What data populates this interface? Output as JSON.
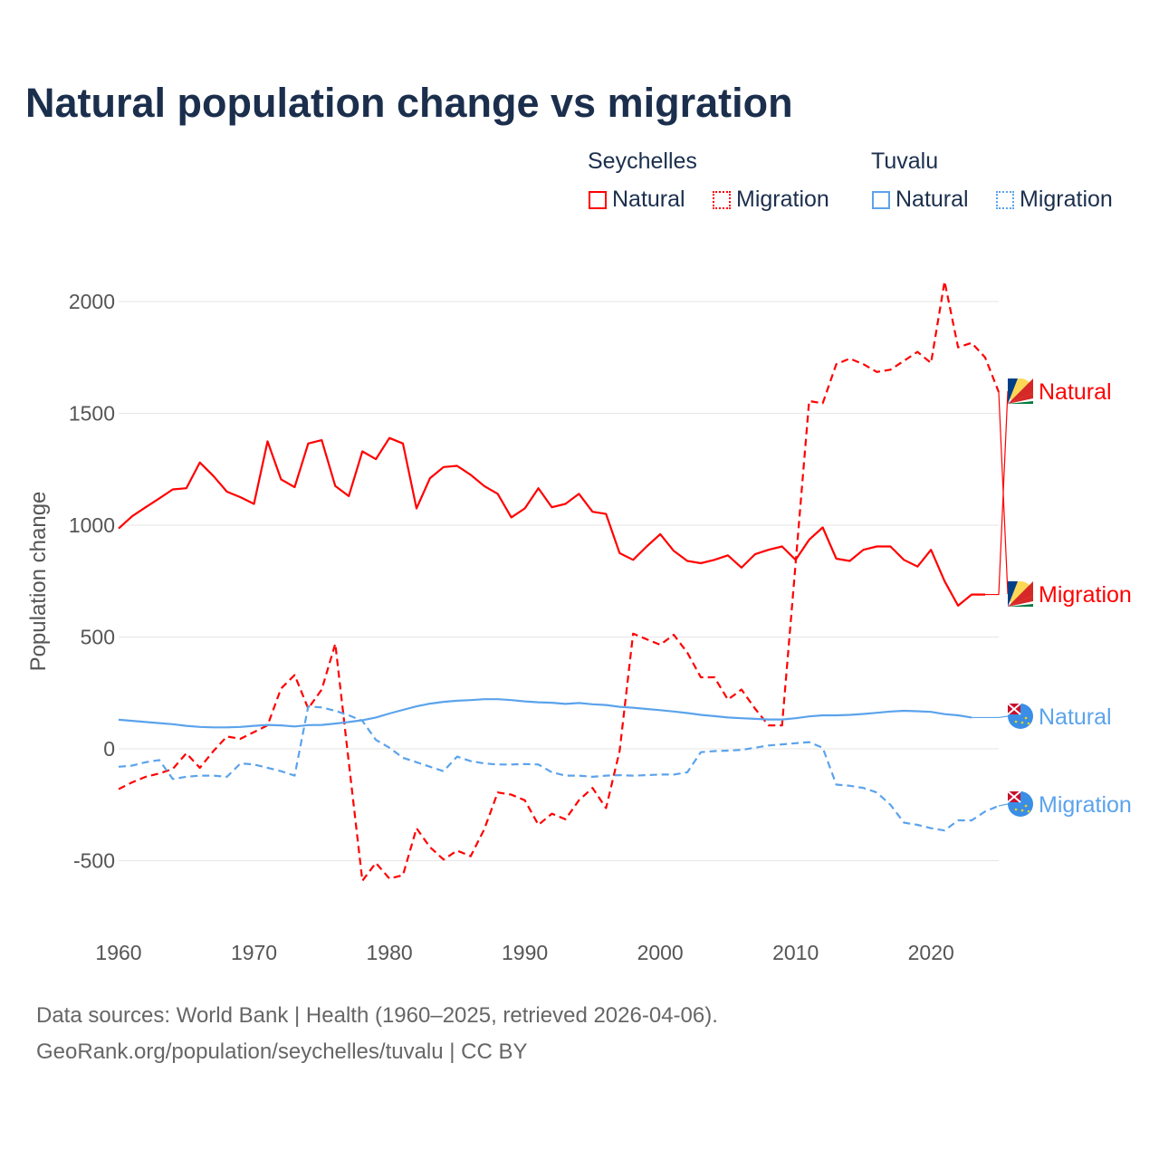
{
  "title": "Natural population change vs migration",
  "legend": {
    "groups": [
      {
        "name": "Seychelles",
        "items": [
          "Natural",
          "Migration"
        ],
        "color": "#ff0000"
      },
      {
        "name": "Tuvalu",
        "items": [
          "Natural",
          "Migration"
        ],
        "color": "#5ba3ec"
      }
    ]
  },
  "footer": {
    "line1": "Data sources: World Bank | Health (1960–2025, retrieved 2026-04-06).",
    "line2": "GeoRank.org/population/seychelles/tuvalu | CC BY"
  },
  "chart_data": {
    "type": "line",
    "title": "Natural population change vs migration",
    "xlabel": "",
    "ylabel": "Population change",
    "xlim": [
      1960,
      2025
    ],
    "ylim": [
      -750,
      2150
    ],
    "xticks": [
      1960,
      1970,
      1980,
      1990,
      2000,
      2010,
      2020
    ],
    "yticks": [
      -500,
      0,
      500,
      1000,
      1500,
      2000
    ],
    "grid": true,
    "legend_position": "top-right",
    "x_start": 1960,
    "series": [
      {
        "name": "Seychelles Natural",
        "label": "Natural",
        "country": "Seychelles",
        "color": "#ff0000",
        "dash": "solid",
        "values": [
          985,
          1040,
          1080,
          1120,
          1160,
          1165,
          1280,
          1220,
          1150,
          1125,
          1095,
          1375,
          1205,
          1170,
          1365,
          1380,
          1175,
          1130,
          1330,
          1295,
          1390,
          1365,
          1075,
          1210,
          1260,
          1265,
          1225,
          1175,
          1140,
          1035,
          1075,
          1165,
          1080,
          1095,
          1140,
          1060,
          1050,
          875,
          845,
          905,
          960,
          885,
          840,
          830,
          845,
          865,
          810,
          870,
          890,
          905,
          845,
          935,
          990,
          850,
          840,
          890,
          905,
          905,
          845,
          815,
          890,
          750,
          640,
          690,
          690
        ]
      },
      {
        "name": "Seychelles Migration",
        "label": "Migration",
        "country": "Seychelles",
        "color": "#ff0000",
        "dash": "dashed",
        "values": [
          -180,
          -150,
          -125,
          -110,
          -90,
          -20,
          -85,
          -10,
          55,
          45,
          75,
          105,
          270,
          330,
          180,
          265,
          470,
          -60,
          -590,
          -510,
          -580,
          -565,
          -355,
          -440,
          -495,
          -455,
          -480,
          -360,
          -195,
          -205,
          -230,
          -340,
          -290,
          -315,
          -230,
          -175,
          -265,
          -10,
          515,
          490,
          465,
          510,
          430,
          320,
          320,
          220,
          265,
          180,
          105,
          105,
          830,
          1555,
          1545,
          1720,
          1745,
          1720,
          1685,
          1695,
          1735,
          1775,
          1725,
          2090,
          1795,
          1815,
          1750,
          1595
        ]
      },
      {
        "name": "Tuvalu Natural",
        "label": "Natural",
        "country": "Tuvalu",
        "color": "#5ba3ec",
        "dash": "solid",
        "values": [
          130,
          125,
          120,
          115,
          110,
          103,
          98,
          96,
          96,
          98,
          103,
          107,
          105,
          100,
          106,
          107,
          113,
          120,
          128,
          140,
          158,
          174,
          190,
          202,
          210,
          215,
          218,
          222,
          222,
          218,
          212,
          208,
          206,
          201,
          205,
          199,
          196,
          188,
          184,
          178,
          173,
          167,
          160,
          152,
          146,
          140,
          137,
          134,
          131,
          131,
          137,
          145,
          150,
          150,
          152,
          156,
          161,
          167,
          170,
          168,
          165,
          155,
          150,
          140
        ]
      },
      {
        "name": "Tuvalu Migration",
        "label": "Migration",
        "country": "Tuvalu",
        "color": "#5ba3ec",
        "dash": "dashed",
        "values": [
          -80,
          -75,
          -60,
          -50,
          -135,
          -125,
          -120,
          -120,
          -125,
          -65,
          -70,
          -85,
          -100,
          -120,
          190,
          185,
          170,
          150,
          125,
          40,
          5,
          -40,
          -60,
          -80,
          -100,
          -35,
          -55,
          -65,
          -70,
          -70,
          -68,
          -70,
          -105,
          -120,
          -120,
          -125,
          -120,
          -118,
          -120,
          -118,
          -115,
          -115,
          -105,
          -15,
          -10,
          -8,
          -5,
          5,
          15,
          20,
          25,
          30,
          5,
          -160,
          -165,
          -175,
          -195,
          -250,
          -330,
          -340,
          -355,
          -365,
          -320,
          -320,
          -280,
          -255
        ]
      }
    ]
  }
}
